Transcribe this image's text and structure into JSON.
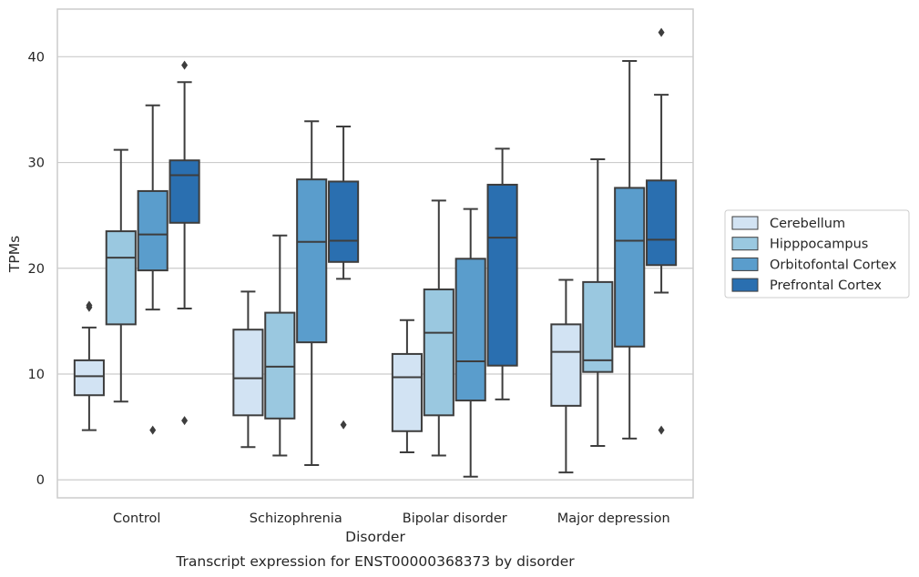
{
  "chart_data": {
    "type": "box",
    "caption": "Transcript expression for ENST00000368373 by disorder",
    "xlabel": "Disorder",
    "ylabel": "TPMs",
    "ylim": [
      -1.7,
      44.5
    ],
    "yticks": [
      0,
      10,
      20,
      30,
      40
    ],
    "grid": "horizontal",
    "legend_position": "right",
    "categories": [
      "Control",
      "Schizophrenia",
      "Bipolar disorder",
      "Major depression"
    ],
    "series": [
      {
        "name": "Cerebellum",
        "color": "#d2e3f3",
        "boxes": [
          {
            "whisker_low": 4.7,
            "q1": 8.0,
            "median": 9.8,
            "q3": 11.3,
            "whisker_high": 14.4,
            "outliers": [
              16.3,
              16.5
            ]
          },
          {
            "whisker_low": 3.1,
            "q1": 6.1,
            "median": 9.6,
            "q3": 14.2,
            "whisker_high": 17.8,
            "outliers": []
          },
          {
            "whisker_low": 2.6,
            "q1": 4.6,
            "median": 9.7,
            "q3": 11.9,
            "whisker_high": 15.1,
            "outliers": []
          },
          {
            "whisker_low": 0.7,
            "q1": 7.0,
            "median": 12.1,
            "q3": 14.7,
            "whisker_high": 18.9,
            "outliers": []
          }
        ]
      },
      {
        "name": "Hipppocampus",
        "color": "#9ac8e0",
        "boxes": [
          {
            "whisker_low": 7.4,
            "q1": 14.7,
            "median": 21.0,
            "q3": 23.5,
            "whisker_high": 31.2,
            "outliers": []
          },
          {
            "whisker_low": 2.3,
            "q1": 5.8,
            "median": 10.7,
            "q3": 15.8,
            "whisker_high": 23.1,
            "outliers": []
          },
          {
            "whisker_low": 2.3,
            "q1": 6.1,
            "median": 13.9,
            "q3": 18.0,
            "whisker_high": 26.4,
            "outliers": []
          },
          {
            "whisker_low": 3.2,
            "q1": 10.2,
            "median": 11.3,
            "q3": 18.7,
            "whisker_high": 30.3,
            "outliers": []
          }
        ]
      },
      {
        "name": "Orbitofontal Cortex",
        "color": "#5a9dcc",
        "boxes": [
          {
            "whisker_low": 16.1,
            "q1": 19.8,
            "median": 23.2,
            "q3": 27.3,
            "whisker_high": 35.4,
            "outliers": [
              4.7
            ]
          },
          {
            "whisker_low": 1.4,
            "q1": 13.0,
            "median": 22.5,
            "q3": 28.4,
            "whisker_high": 33.9,
            "outliers": []
          },
          {
            "whisker_low": 0.3,
            "q1": 7.5,
            "median": 11.2,
            "q3": 20.9,
            "whisker_high": 25.6,
            "outliers": []
          },
          {
            "whisker_low": 3.9,
            "q1": 12.6,
            "median": 22.6,
            "q3": 27.6,
            "whisker_high": 39.6,
            "outliers": []
          }
        ]
      },
      {
        "name": "Prefrontal Cortex",
        "color": "#2a6fb0",
        "boxes": [
          {
            "whisker_low": 16.2,
            "q1": 24.3,
            "median": 28.8,
            "q3": 30.2,
            "whisker_high": 37.6,
            "outliers": [
              39.2,
              5.6
            ]
          },
          {
            "whisker_low": 19.0,
            "q1": 20.6,
            "median": 22.6,
            "q3": 28.2,
            "whisker_high": 33.4,
            "outliers": [
              5.2
            ]
          },
          {
            "whisker_low": 7.6,
            "q1": 10.8,
            "median": 22.9,
            "q3": 27.9,
            "whisker_high": 31.3,
            "outliers": []
          },
          {
            "whisker_low": 17.7,
            "q1": 20.3,
            "median": 22.7,
            "q3": 28.3,
            "whisker_high": 36.4,
            "outliers": [
              42.3,
              4.7
            ]
          }
        ]
      }
    ]
  },
  "colors": {
    "edge": "#3d3d3d",
    "grid": "#cccccc",
    "frame": "#cccccc"
  }
}
